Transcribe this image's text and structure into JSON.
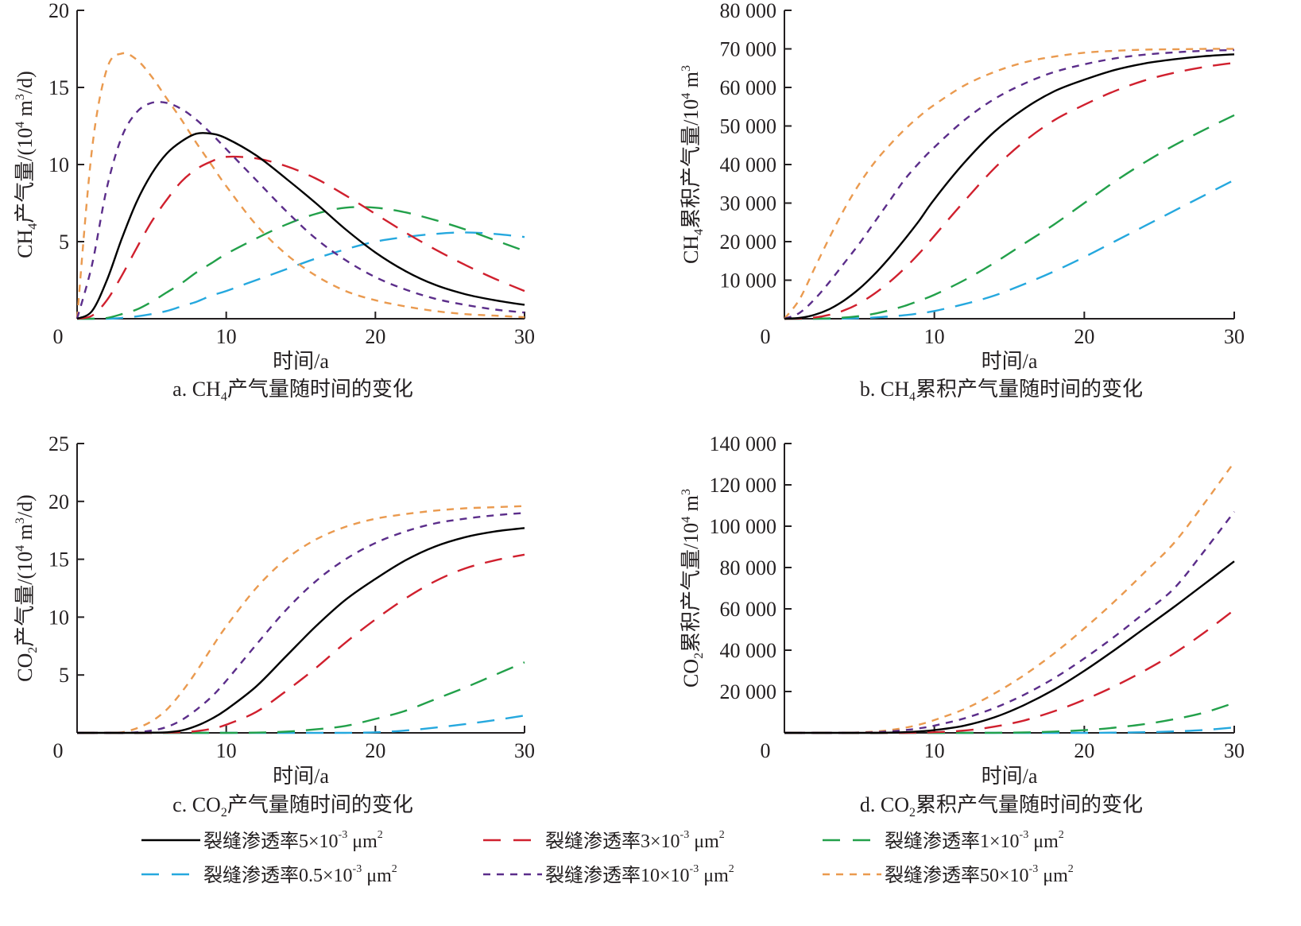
{
  "x_values": [
    0,
    1,
    2,
    3,
    4,
    5,
    6,
    7,
    8,
    9,
    10,
    12,
    14,
    16,
    18,
    20,
    22,
    24,
    26,
    28,
    30
  ],
  "legend": [
    {
      "key": "k5",
      "label": "裂缝渗透率5×10",
      "exp": "-3",
      "unit": " μm",
      "unit_exp": "2",
      "color": "#000000",
      "dash": "solid"
    },
    {
      "key": "k3",
      "label": "裂缝渗透率3×10",
      "exp": "-3",
      "unit": " μm",
      "unit_exp": "2",
      "color": "#d0202e",
      "dash": "long"
    },
    {
      "key": "k1",
      "label": "裂缝渗透率1×10",
      "exp": "-3",
      "unit": " μm",
      "unit_exp": "2",
      "color": "#22a04a",
      "dash": "long"
    },
    {
      "key": "k05",
      "label": "裂缝渗透率0.5×10",
      "exp": "-3",
      "unit": " μm",
      "unit_exp": "2",
      "color": "#25a8de",
      "dash": "long"
    },
    {
      "key": "k10",
      "label": "裂缝渗透率10×10",
      "exp": "-3",
      "unit": " μm",
      "unit_exp": "2",
      "color": "#5b2d8a",
      "dash": "short"
    },
    {
      "key": "k50",
      "label": "裂缝渗透率50×10",
      "exp": "-3",
      "unit": " μm",
      "unit_exp": "2",
      "color": "#ea9a4f",
      "dash": "short"
    }
  ],
  "chart_data": [
    {
      "id": "a",
      "type": "line",
      "caption_prefix": "a. CH",
      "caption_sub": "4",
      "caption_suffix": "产气量随时间的变化",
      "xlabel": "时间/a",
      "ylabel_parts": [
        "CH",
        "4",
        "产气量/(10",
        "4",
        " m",
        "3",
        "/d)"
      ],
      "xlim": [
        0,
        30
      ],
      "ylim": [
        0,
        20
      ],
      "xticks": [
        0,
        10,
        20,
        30
      ],
      "yticks": [
        5,
        10,
        15,
        20
      ],
      "ytick_labels": [
        "5",
        "10",
        "15",
        "20"
      ],
      "series": [
        {
          "key": "k5",
          "values": [
            0,
            0.5,
            2.5,
            5.2,
            7.6,
            9.4,
            10.7,
            11.5,
            12.0,
            12.0,
            11.7,
            10.6,
            9.1,
            7.5,
            5.8,
            4.3,
            3.1,
            2.2,
            1.6,
            1.2,
            0.9
          ]
        },
        {
          "key": "k3",
          "values": [
            0,
            0.2,
            1.2,
            2.8,
            4.6,
            6.3,
            7.7,
            8.9,
            9.7,
            10.2,
            10.5,
            10.4,
            9.9,
            9.1,
            8.0,
            6.8,
            5.6,
            4.5,
            3.5,
            2.6,
            1.8
          ]
        },
        {
          "key": "k1",
          "values": [
            0,
            0,
            0.05,
            0.3,
            0.6,
            1.1,
            1.7,
            2.3,
            3.0,
            3.6,
            4.2,
            5.2,
            6.1,
            6.8,
            7.2,
            7.2,
            6.9,
            6.4,
            5.8,
            5.1,
            4.4
          ]
        },
        {
          "key": "k05",
          "values": [
            0,
            0,
            0,
            0.05,
            0.15,
            0.3,
            0.5,
            0.8,
            1.1,
            1.5,
            1.8,
            2.5,
            3.2,
            3.9,
            4.5,
            5.0,
            5.3,
            5.5,
            5.6,
            5.5,
            5.3
          ]
        },
        {
          "key": "k10",
          "values": [
            0,
            3.5,
            8.5,
            11.8,
            13.4,
            14.0,
            14.0,
            13.6,
            12.9,
            12.0,
            11.0,
            9.0,
            7.0,
            5.2,
            3.8,
            2.7,
            1.9,
            1.3,
            0.9,
            0.6,
            0.4
          ]
        },
        {
          "key": "k50",
          "values": [
            0,
            11,
            16.2,
            17.2,
            16.8,
            15.7,
            14.3,
            12.9,
            11.4,
            10.0,
            8.6,
            6.1,
            4.2,
            2.8,
            1.8,
            1.2,
            0.8,
            0.5,
            0.3,
            0.2,
            0.1
          ]
        }
      ]
    },
    {
      "id": "b",
      "type": "line",
      "caption_prefix": "b. CH",
      "caption_sub": "4",
      "caption_suffix": "累积产气量随时间的变化",
      "xlabel": "时间/a",
      "ylabel_parts": [
        "CH",
        "4",
        "累积产气量/10",
        "4",
        " m",
        "3",
        ""
      ],
      "xlim": [
        0,
        30
      ],
      "ylim": [
        0,
        80000
      ],
      "xticks": [
        0,
        10,
        20,
        30
      ],
      "yticks": [
        10000,
        20000,
        30000,
        40000,
        50000,
        60000,
        70000,
        80000
      ],
      "ytick_labels": [
        "10 000",
        "20 000",
        "30 000",
        "40 000",
        "50 000",
        "60 000",
        "70 000",
        "80 000"
      ],
      "series": [
        {
          "key": "k5",
          "values": [
            0,
            200,
            1000,
            2500,
            4800,
            7800,
            11500,
            15800,
            20500,
            25500,
            31000,
            40500,
            48500,
            54500,
            59000,
            62000,
            64500,
            66200,
            67300,
            68100,
            68600
          ]
        },
        {
          "key": "k3",
          "values": [
            0,
            50,
            300,
            1000,
            2200,
            4000,
            6500,
            9500,
            13000,
            17000,
            21500,
            30500,
            39000,
            46000,
            51500,
            55500,
            59000,
            61800,
            63800,
            65300,
            66400
          ]
        },
        {
          "key": "k1",
          "values": [
            0,
            0,
            0,
            100,
            300,
            700,
            1300,
            2200,
            3300,
            4700,
            6200,
            10000,
            14500,
            19500,
            24500,
            30000,
            35500,
            40500,
            45000,
            49000,
            52800
          ]
        },
        {
          "key": "k05",
          "values": [
            0,
            0,
            0,
            0,
            50,
            150,
            300,
            600,
            900,
            1400,
            2000,
            3800,
            6000,
            9000,
            12300,
            16000,
            20000,
            24000,
            28000,
            32000,
            36000
          ]
        },
        {
          "key": "k10",
          "values": [
            0,
            1500,
            5000,
            9500,
            14500,
            19500,
            25000,
            30500,
            36000,
            40500,
            44500,
            51500,
            57000,
            61000,
            64000,
            66000,
            67500,
            68500,
            69100,
            69500,
            69700
          ]
        },
        {
          "key": "k50",
          "values": [
            0,
            5000,
            13000,
            21000,
            28500,
            35000,
            40500,
            45000,
            49000,
            52500,
            55500,
            60500,
            64000,
            66500,
            68000,
            69000,
            69500,
            69800,
            69900,
            70000,
            70000
          ]
        }
      ]
    },
    {
      "id": "c",
      "type": "line",
      "caption_prefix": "c. CO",
      "caption_sub": "2",
      "caption_suffix": "产气量随时间的变化",
      "xlabel": "时间/a",
      "ylabel_parts": [
        "CO",
        "2",
        "产气量/(10",
        "4",
        " m",
        "3",
        "/d)"
      ],
      "xlim": [
        0,
        30
      ],
      "ylim": [
        0,
        25
      ],
      "xticks": [
        0,
        10,
        20,
        30
      ],
      "yticks": [
        5,
        10,
        15,
        20,
        25
      ],
      "ytick_labels": [
        "5",
        "10",
        "15",
        "20",
        "25"
      ],
      "series": [
        {
          "key": "k5",
          "values": [
            0,
            0,
            0,
            0,
            0,
            0.02,
            0.05,
            0.2,
            0.6,
            1.2,
            2.0,
            4.0,
            6.6,
            9.2,
            11.5,
            13.3,
            14.9,
            16.1,
            16.9,
            17.4,
            17.7
          ]
        },
        {
          "key": "k3",
          "values": [
            0,
            0,
            0,
            0,
            0,
            0,
            0.02,
            0.05,
            0.15,
            0.35,
            0.7,
            1.8,
            3.6,
            5.6,
            7.8,
            9.8,
            11.6,
            13.1,
            14.2,
            14.9,
            15.4
          ]
        },
        {
          "key": "k1",
          "values": [
            0,
            0,
            0,
            0,
            0,
            0,
            0,
            0,
            0,
            0,
            0,
            0.02,
            0.1,
            0.3,
            0.6,
            1.2,
            1.9,
            2.9,
            3.9,
            5.0,
            6.1
          ]
        },
        {
          "key": "k05",
          "values": [
            0,
            0,
            0,
            0,
            0,
            0,
            0,
            0,
            0,
            0,
            0,
            0,
            0,
            0,
            0,
            0.05,
            0.2,
            0.45,
            0.75,
            1.1,
            1.5
          ]
        },
        {
          "key": "k10",
          "values": [
            0,
            0,
            0,
            0,
            0.05,
            0.2,
            0.5,
            1.1,
            2.0,
            3.1,
            4.5,
            7.6,
            10.6,
            13.1,
            15.0,
            16.4,
            17.4,
            18.1,
            18.5,
            18.8,
            19.0
          ]
        },
        {
          "key": "k50",
          "values": [
            0,
            0,
            0,
            0.05,
            0.4,
            1.0,
            2.0,
            3.5,
            5.3,
            7.3,
            9.2,
            12.5,
            15.0,
            16.7,
            17.8,
            18.5,
            18.9,
            19.2,
            19.4,
            19.5,
            19.6
          ]
        }
      ]
    },
    {
      "id": "d",
      "type": "line",
      "caption_prefix": "d. CO",
      "caption_sub": "2",
      "caption_suffix": "累积产气量随时间的变化",
      "xlabel": "时间/a",
      "ylabel_parts": [
        "CO",
        "2",
        "累积产气量/10",
        "4",
        " m",
        "3",
        ""
      ],
      "xlim": [
        0,
        30
      ],
      "ylim": [
        0,
        140000
      ],
      "xticks": [
        0,
        10,
        20,
        30
      ],
      "yticks": [
        20000,
        40000,
        60000,
        80000,
        100000,
        120000,
        140000
      ],
      "ytick_labels": [
        "20 000",
        "40 000",
        "60 000",
        "80 000",
        "100 000",
        "120 000",
        "140 000"
      ],
      "series": [
        {
          "key": "k5",
          "values": [
            0,
            0,
            0,
            0,
            0,
            0,
            0,
            100,
            300,
            700,
            1300,
            3500,
            7500,
            13500,
            21000,
            30000,
            40000,
            50500,
            61000,
            72000,
            83000
          ]
        },
        {
          "key": "k3",
          "values": [
            0,
            0,
            0,
            0,
            0,
            0,
            0,
            0,
            0,
            100,
            300,
            1100,
            3000,
            6000,
            10500,
            16000,
            22500,
            30000,
            38500,
            48500,
            59500
          ]
        },
        {
          "key": "k1",
          "values": [
            0,
            0,
            0,
            0,
            0,
            0,
            0,
            0,
            0,
            0,
            0,
            0,
            50,
            200,
            600,
            1300,
            2500,
            4200,
            6600,
            9800,
            14500
          ]
        },
        {
          "key": "k05",
          "values": [
            0,
            0,
            0,
            0,
            0,
            0,
            0,
            0,
            0,
            0,
            0,
            0,
            0,
            0,
            0,
            0,
            100,
            300,
            700,
            1400,
            2600
          ]
        },
        {
          "key": "k10",
          "values": [
            0,
            0,
            0,
            0,
            0,
            100,
            300,
            700,
            1300,
            2200,
            3500,
            7000,
            12000,
            18500,
            26500,
            36000,
            46500,
            58000,
            70000,
            88000,
            107000
          ]
        },
        {
          "key": "k50",
          "values": [
            0,
            0,
            0,
            0,
            0,
            200,
            600,
            1300,
            2400,
            4000,
            6200,
            11500,
            19000,
            28000,
            38500,
            50500,
            63500,
            77500,
            92000,
            111000,
            131000
          ]
        }
      ]
    }
  ]
}
